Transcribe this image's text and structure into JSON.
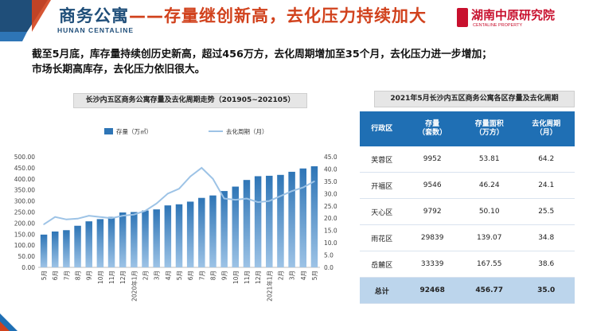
{
  "header": {
    "title_main": "商务公寓",
    "title_dash": "——",
    "title_sub": "存量继创新高，去化压力持续加大",
    "title_en": "HUNAN CENTALINE",
    "brand_name": "湖南中原研究院",
    "brand_en": "CENTALINE PROPERTY"
  },
  "summary": {
    "line1": "截至5月底，库存量持续创历史新高，超过456万方，去化周期增加至35个月，去化压力进一步增加；",
    "line2": "市场长期高库存，去化压力依旧很大。"
  },
  "colors": {
    "bar": "#2e75b6",
    "line": "#9dc3e6",
    "header_blue": "#1f4e79",
    "accent": "#d1421d",
    "table_head": "#1f6fb4",
    "total_row": "#bcd5ec"
  },
  "chart_data": {
    "type": "bar+line",
    "title": "长沙内五区商务公寓存量及去化周期走势（201905~202105）",
    "categories": [
      "5月",
      "6月",
      "7月",
      "8月",
      "9月",
      "10月",
      "11月",
      "12月",
      "2020年1月",
      "2月",
      "3月",
      "4月",
      "5月",
      "6月",
      "7月",
      "8月",
      "9月",
      "10月",
      "11月",
      "12月",
      "2021年1月",
      "2月",
      "3月",
      "4月",
      "5月"
    ],
    "series": [
      {
        "name": "存量（万㎡）",
        "type": "bar",
        "axis": "left",
        "values": [
          148,
          162,
          168,
          188,
          208,
          218,
          228,
          248,
          250,
          257,
          262,
          280,
          285,
          297,
          314,
          325,
          345,
          365,
          395,
          412,
          414,
          418,
          432,
          447,
          457
        ]
      },
      {
        "name": "去化周期（月）",
        "type": "line",
        "axis": "right",
        "values": [
          17.5,
          20.5,
          19.5,
          19.8,
          21,
          20.5,
          20,
          21,
          21.5,
          23,
          26,
          30,
          32,
          37,
          40.5,
          36,
          28,
          27.5,
          28,
          26.5,
          27,
          29,
          31,
          32.5,
          35
        ]
      }
    ],
    "left_axis": {
      "min": 0,
      "max": 500,
      "step": 50,
      "tick_labels": [
        "0.00",
        "50.00",
        "100.00",
        "150.00",
        "200.00",
        "250.00",
        "300.00",
        "350.00",
        "400.00",
        "450.00",
        "500.00"
      ]
    },
    "right_axis": {
      "min": 0,
      "max": 45,
      "step": 5,
      "tick_labels": [
        "0.0",
        "5.0",
        "10.0",
        "15.0",
        "20.0",
        "25.0",
        "30.0",
        "35.0",
        "40.0",
        "45.0"
      ]
    },
    "legend_position": "top-center",
    "grid": false
  },
  "table": {
    "title": "2021年5月长沙内五区商务公寓各区存量及去化周期",
    "headers": [
      {
        "line1": "行政区",
        "line2": ""
      },
      {
        "line1": "存量",
        "line2": "（套数）"
      },
      {
        "line1": "存量面积",
        "line2": "（万方）"
      },
      {
        "line1": "去化周期",
        "line2": "（月）"
      }
    ],
    "rows": [
      [
        "芙蓉区",
        "9952",
        "53.81",
        "64.2"
      ],
      [
        "开福区",
        "9546",
        "46.24",
        "24.1"
      ],
      [
        "天心区",
        "9792",
        "50.10",
        "25.5"
      ],
      [
        "雨花区",
        "29839",
        "139.07",
        "34.8"
      ],
      [
        "岳麓区",
        "33339",
        "167.55",
        "38.6"
      ]
    ],
    "total": [
      "总计",
      "92468",
      "456.77",
      "35.0"
    ]
  }
}
